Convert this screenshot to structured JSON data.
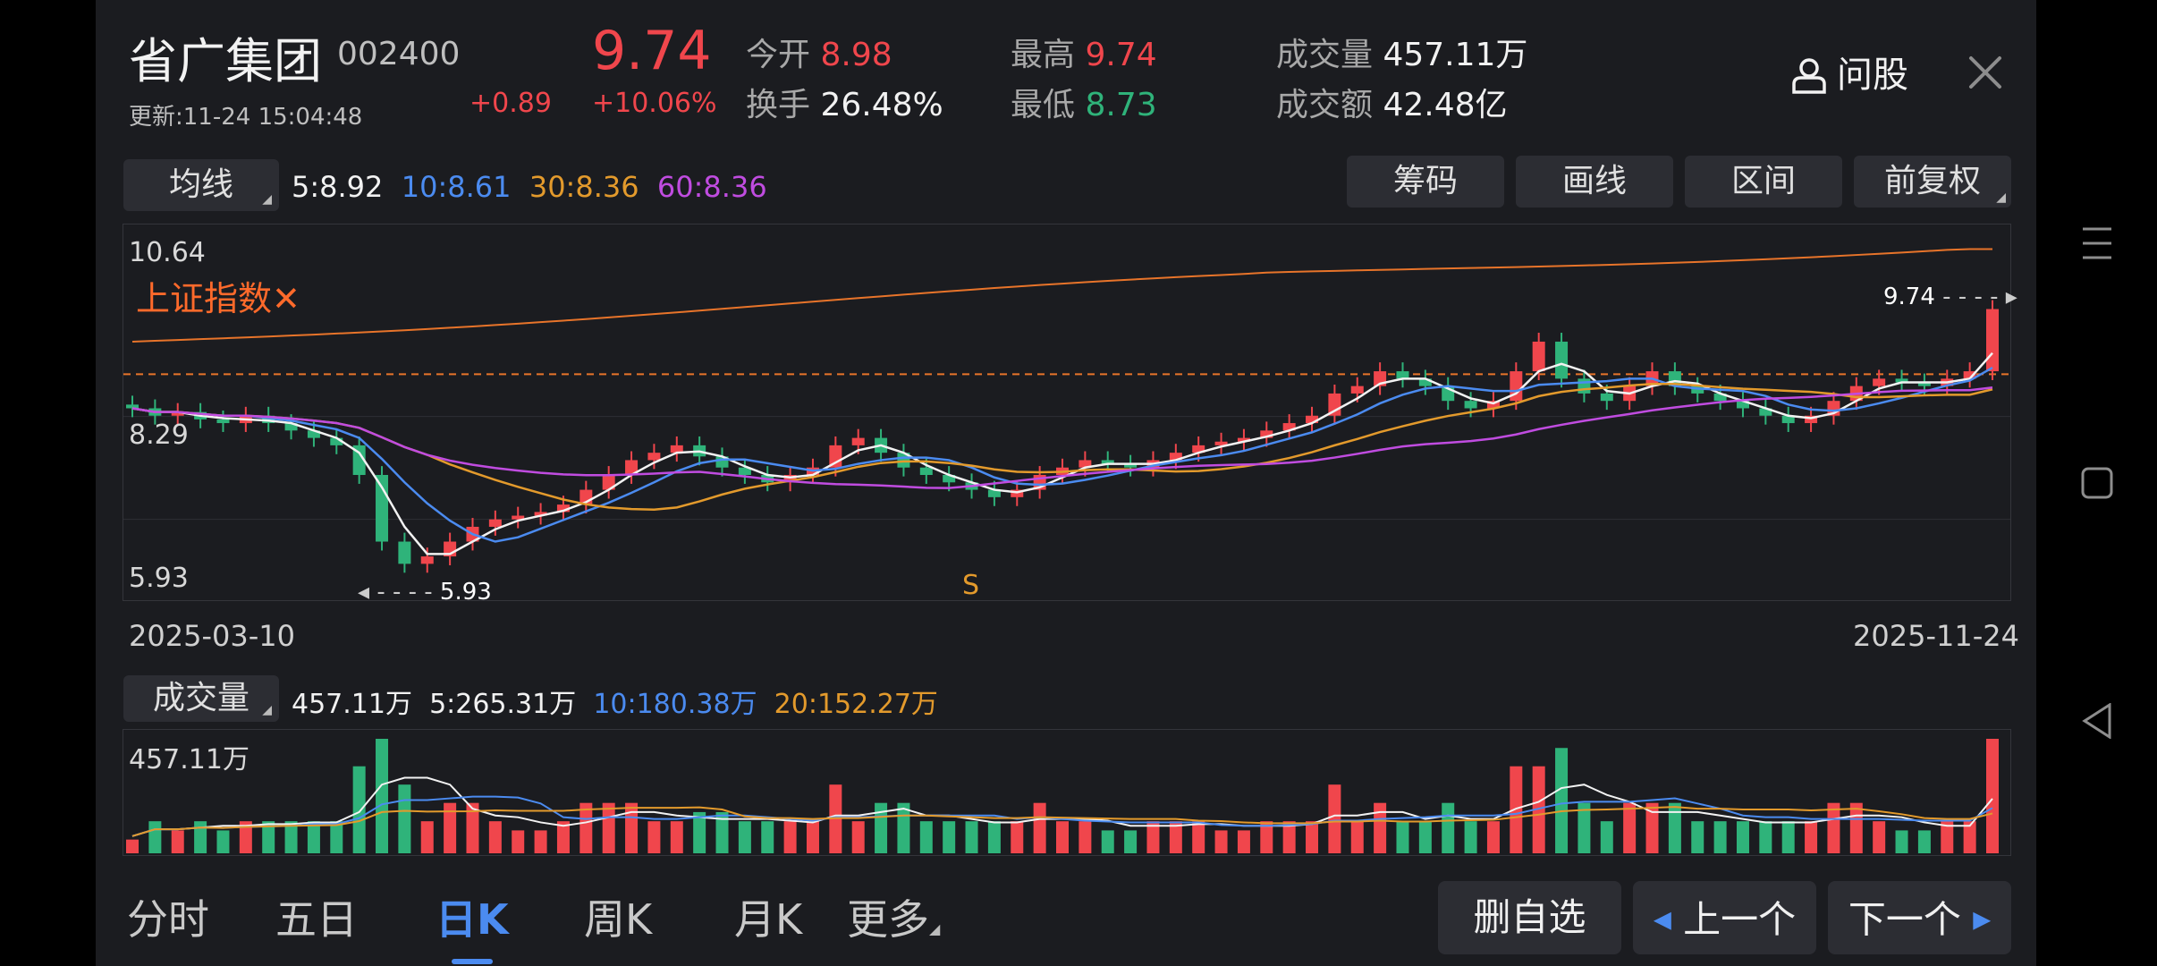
{
  "stock": {
    "name": "省广集团",
    "code": "002400",
    "update_time": "更新:11-24 15:04:48",
    "price": "9.74",
    "change": "+0.89",
    "change_pct": "+10.06%"
  },
  "stats": {
    "open_label": "今开",
    "open_value": "8.98",
    "turnover_label": "换手",
    "turnover_value": "26.48%",
    "high_label": "最高",
    "high_value": "9.74",
    "low_label": "最低",
    "low_value": "8.73",
    "volume_label": "成交量",
    "volume_value": "457.11万",
    "amount_label": "成交额",
    "amount_value": "42.48亿"
  },
  "header_actions": {
    "ask_label": "问股",
    "close_icon": "close-icon",
    "user_icon": "user-icon"
  },
  "ma_bar": {
    "dropdown_label": "均线",
    "ma5": "5:8.92",
    "ma10": "10:8.61",
    "ma30": "30:8.36",
    "ma60": "60:8.36"
  },
  "toolbar": {
    "chips": "筹码",
    "draw": "画线",
    "range": "区间",
    "adjust": "前复权"
  },
  "kline": {
    "y_max": "10.64",
    "y_mid": "8.29",
    "y_min": "5.93",
    "overlay_label": "上证指数✕",
    "last_price_tag": "9.74",
    "low_marker": "5.93",
    "date_start": "2025-03-10",
    "date_end": "2025-11-24",
    "s_text": "S"
  },
  "volume_bar": {
    "dropdown_label": "成交量",
    "current": "457.11万",
    "ma5": "5:265.31万",
    "ma10": "10:180.38万",
    "ma20": "20:152.27万"
  },
  "volume_chart": {
    "y_max": "457.11万"
  },
  "bottom_tabs": [
    "分时",
    "五日",
    "日K",
    "周K",
    "月K",
    "更多"
  ],
  "bottom_active": "日K",
  "bottom_buttons": {
    "remove": "删自选",
    "prev": "上一个",
    "next": "下一个"
  },
  "colors": {
    "up": "#f0464c",
    "down": "#2fb37a",
    "ma5": "#f2f2f2",
    "ma10": "#4b8bf0",
    "ma30": "#e39a2c",
    "ma60": "#c04ce0",
    "index_line": "#e8742a",
    "bg": "#1b1c20",
    "accent": "#4b8bf0"
  },
  "chart_data": {
    "type": "candlestick",
    "title": "",
    "x_range": [
      "2025-03-10",
      "2025-11-24"
    ],
    "ylim": [
      5.93,
      10.64
    ],
    "low_point": 5.93,
    "last_close": 9.74,
    "close_series": [
      8.4,
      8.3,
      8.35,
      8.25,
      8.2,
      8.3,
      8.2,
      8.1,
      8.0,
      7.9,
      7.5,
      6.6,
      6.3,
      6.4,
      6.6,
      6.8,
      6.9,
      6.95,
      7.0,
      7.1,
      7.3,
      7.5,
      7.7,
      7.8,
      7.9,
      7.75,
      7.6,
      7.5,
      7.4,
      7.5,
      7.6,
      7.9,
      8.0,
      7.8,
      7.6,
      7.5,
      7.4,
      7.3,
      7.2,
      7.3,
      7.5,
      7.6,
      7.7,
      7.65,
      7.6,
      7.7,
      7.8,
      7.9,
      7.95,
      8.0,
      8.1,
      8.2,
      8.3,
      8.6,
      8.7,
      8.9,
      8.8,
      8.7,
      8.5,
      8.4,
      8.5,
      8.9,
      9.3,
      8.8,
      8.6,
      8.5,
      8.7,
      8.9,
      8.7,
      8.6,
      8.5,
      8.4,
      8.3,
      8.2,
      8.3,
      8.5,
      8.7,
      8.8,
      8.75,
      8.7,
      8.8,
      8.9,
      9.74
    ],
    "ma_legend": {
      "MA5": 8.92,
      "MA10": 8.61,
      "MA30": 8.36,
      "MA60": 8.36
    },
    "volume_legend": {
      "current": "457.11万",
      "MA5": "265.31万",
      "MA10": "180.38万",
      "MA20": "152.27万"
    }
  }
}
